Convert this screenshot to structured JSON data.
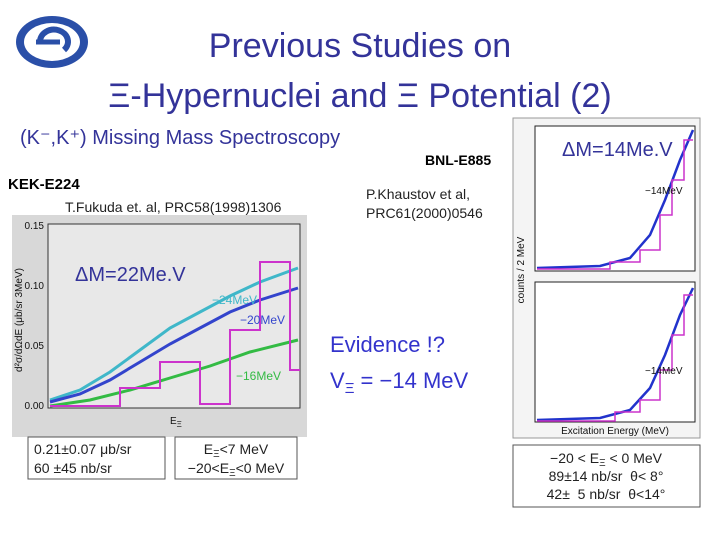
{
  "header": {
    "title_line1": "Previous Studies on",
    "title_line2": "Ξ-Hypernuclei and Ξ Potential (2)",
    "subtitle": "(K⁻,K⁺) Missing Mass Spectroscopy"
  },
  "kek": {
    "experiment": "KEK-E224",
    "reference": "T.Fukuda et. al, PRC58(1998)1306",
    "resolution": "ΔM=22Me.V",
    "plot": {
      "yticks": [
        "0.15",
        "0.10",
        "0.05",
        "0.00"
      ],
      "ylabel": "d²σ/dΩdE (μb/sr 3MeV)",
      "xlabel": [
        "E",
        "Ξ"
      ],
      "curves": [
        "−24MeV",
        "−20MeV",
        "−16MeV"
      ]
    },
    "box_left": [
      "0.21±0.07 μb/sr",
      "60 ±45 nb/sr"
    ],
    "box_mid": [
      [
        "E",
        "Ξ",
        "<7 MeV"
      ],
      [
        "−20<E",
        "Ξ",
        "<0 MeV"
      ]
    ]
  },
  "bnl": {
    "experiment": "BNL-E885",
    "reference": [
      "P.Khaustov et al,",
      "PRC61(2000)0546"
    ],
    "resolution": "ΔM=14Me.V",
    "plot": {
      "top_label": "−14MeV",
      "bottom_label": "−14MeV",
      "xlabel": "Excitation Energy (MeV)",
      "ylabel": "counts / 2 MeV"
    },
    "box": [
      [
        "−20 < E",
        "Ξ",
        " < 0 MeV"
      ],
      [
        "89±14 nb/sr  θ< 8°"
      ],
      [
        "42±  5 nb/sr  θ<14°"
      ]
    ]
  },
  "evidence": {
    "line1": "Evidence !?",
    "line2": [
      "V",
      "Ξ",
      " = −14 MeV"
    ]
  }
}
